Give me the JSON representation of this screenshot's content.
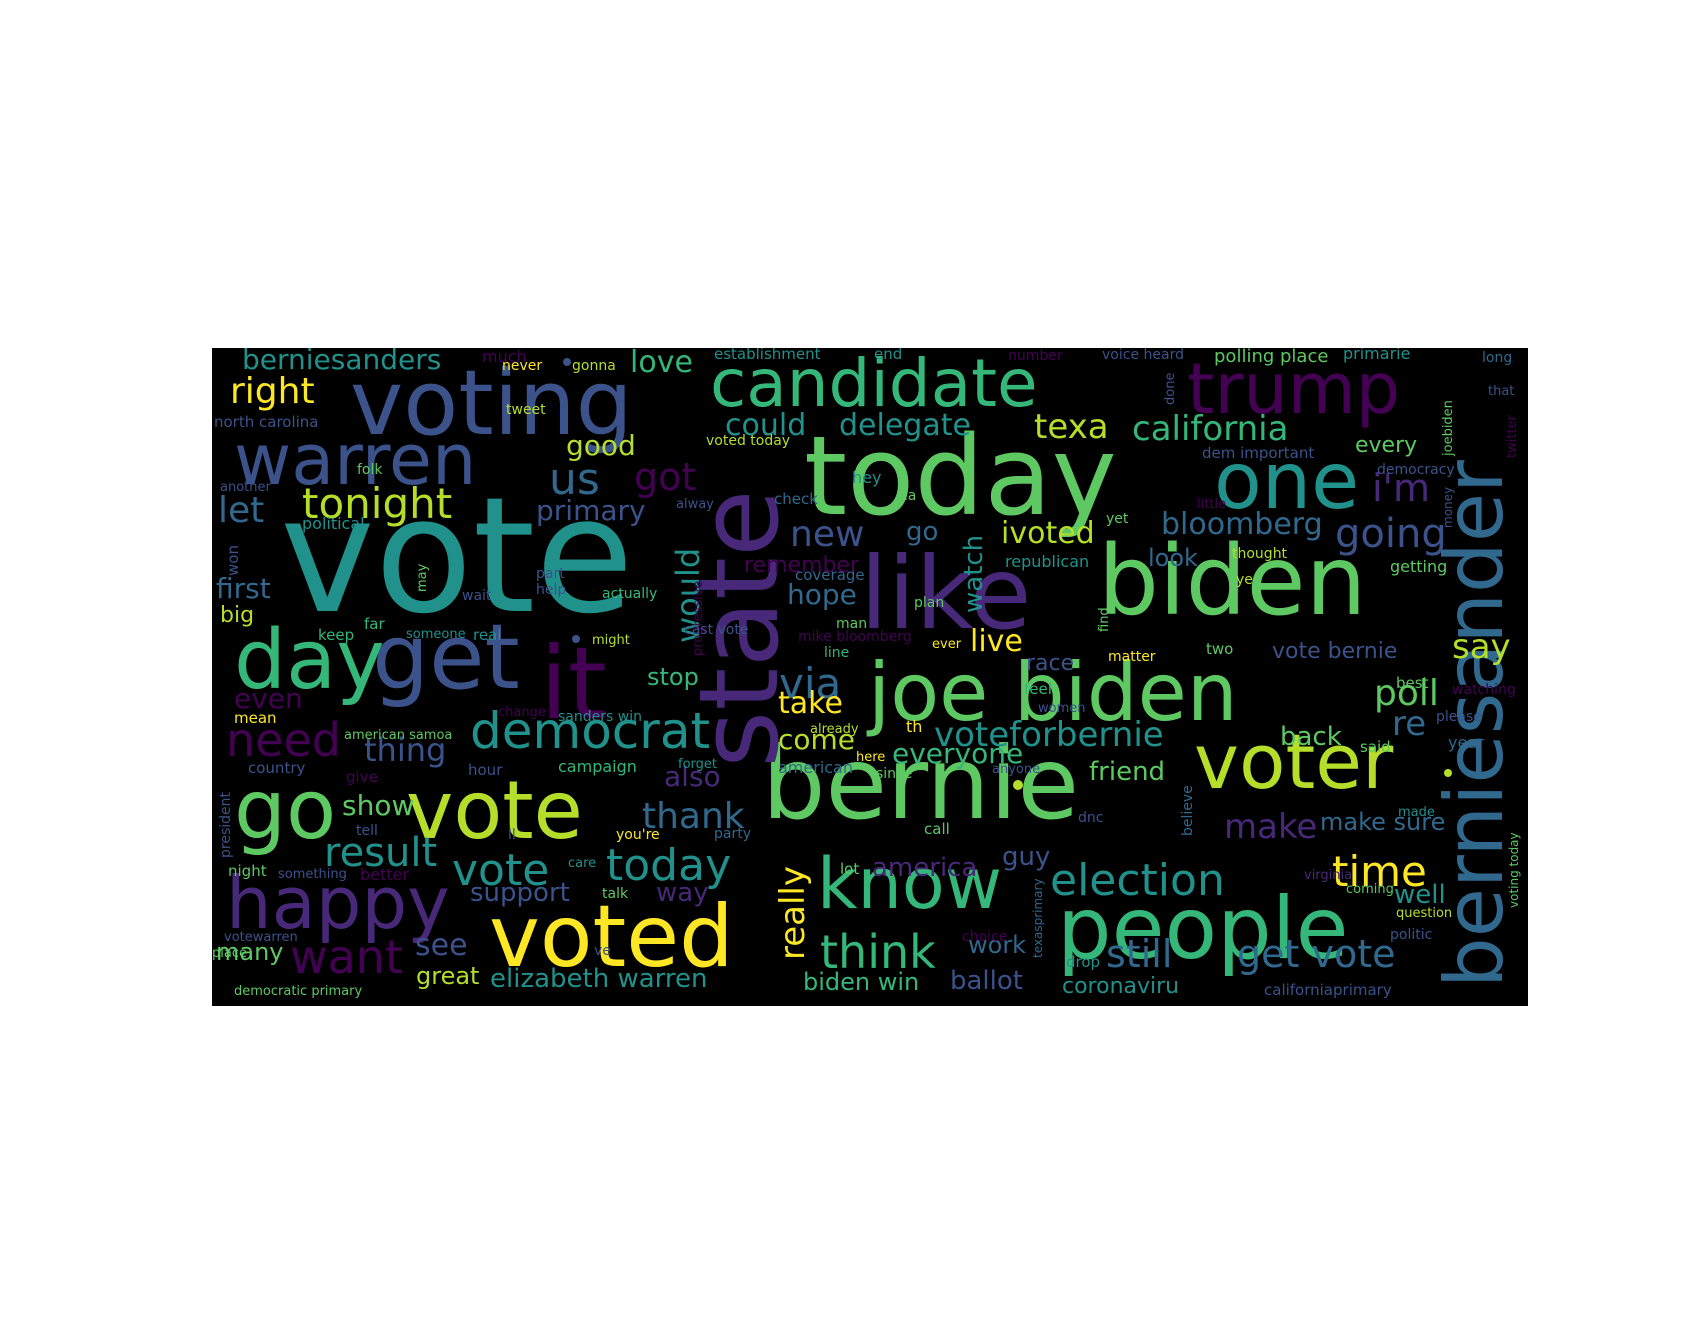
{
  "palette": {
    "background": "#000000",
    "c1": "#440154",
    "c2": "#3b528b",
    "c3": "#21918c",
    "c4": "#5ec962",
    "c5": "#fde725"
  },
  "words": [
    {
      "text": "vote",
      "color": "#21918c"
    },
    {
      "text": "today",
      "color": "#5ec962"
    },
    {
      "text": "bernie",
      "color": "#5ec962"
    },
    {
      "text": "voting",
      "color": "#3b528b"
    },
    {
      "text": "candidate",
      "color": "#35b779"
    },
    {
      "text": "trump",
      "color": "#440154"
    },
    {
      "text": "biden",
      "color": "#5ec962"
    },
    {
      "text": "joe biden",
      "color": "#5ec962"
    },
    {
      "text": "like",
      "color": "#482878"
    },
    {
      "text": "state",
      "color": "#482878"
    },
    {
      "text": "berniesander",
      "color": "#31688e"
    },
    {
      "text": "get",
      "color": "#3b528b"
    },
    {
      "text": "it",
      "color": "#440154"
    },
    {
      "text": "day",
      "color": "#35b779"
    },
    {
      "text": "warren",
      "color": "#3b528b"
    },
    {
      "text": "one",
      "color": "#21918c"
    },
    {
      "text": "voter",
      "color": "#b5de2b"
    },
    {
      "text": "go",
      "color": "#5ec962"
    },
    {
      "text": "vote",
      "color": "#b5de2b"
    },
    {
      "text": "voted",
      "color": "#fde725"
    },
    {
      "text": "people",
      "color": "#35b779"
    },
    {
      "text": "happy",
      "color": "#482878"
    },
    {
      "text": "know",
      "color": "#35b779"
    },
    {
      "text": "democrat",
      "color": "#21918c"
    },
    {
      "text": "tonight",
      "color": "#b5de2b"
    },
    {
      "text": "election",
      "color": "#21918c"
    },
    {
      "text": "today",
      "color": "#21918c"
    },
    {
      "text": "vote",
      "color": "#21918c"
    },
    {
      "text": "think",
      "color": "#35b779"
    },
    {
      "text": "need",
      "color": "#440154"
    },
    {
      "text": "want",
      "color": "#440154"
    },
    {
      "text": "time",
      "color": "#fde725"
    },
    {
      "text": "california",
      "color": "#35b779"
    },
    {
      "text": "voteforbernie",
      "color": "#21918c"
    },
    {
      "text": "via",
      "color": "#31688e"
    },
    {
      "text": "us",
      "color": "#31688e"
    },
    {
      "text": "new",
      "color": "#3b528b"
    },
    {
      "text": "going",
      "color": "#3b528b"
    },
    {
      "text": "berniesanders",
      "color": "#21918c"
    },
    {
      "text": "right",
      "color": "#fde725"
    },
    {
      "text": "got",
      "color": "#440154"
    },
    {
      "text": "texa",
      "color": "#b5de2b"
    },
    {
      "text": "delegate",
      "color": "#21918c"
    },
    {
      "text": "could",
      "color": "#21918c"
    },
    {
      "text": "result",
      "color": "#21918c"
    },
    {
      "text": "i'm",
      "color": "#482878"
    },
    {
      "text": "poll",
      "color": "#5ec962"
    },
    {
      "text": "say",
      "color": "#b5de2b"
    },
    {
      "text": "re",
      "color": "#31688e"
    },
    {
      "text": "live",
      "color": "#fde725"
    },
    {
      "text": "would",
      "color": "#21918c"
    },
    {
      "text": "watch",
      "color": "#21918c"
    },
    {
      "text": "bloomberg",
      "color": "#31688e"
    },
    {
      "text": "ivoted",
      "color": "#b5de2b"
    },
    {
      "text": "thank",
      "color": "#31688e"
    },
    {
      "text": "make",
      "color": "#482878"
    },
    {
      "text": "really",
      "color": "#fde725"
    },
    {
      "text": "get vote",
      "color": "#31688e"
    },
    {
      "text": "still",
      "color": "#31688e"
    },
    {
      "text": "let",
      "color": "#31688e"
    },
    {
      "text": "primary",
      "color": "#3b528b"
    },
    {
      "text": "good",
      "color": "#b5de2b"
    },
    {
      "text": "love",
      "color": "#35b779"
    },
    {
      "text": "take",
      "color": "#fde725"
    },
    {
      "text": "come",
      "color": "#b5de2b"
    },
    {
      "text": "hope",
      "color": "#31688e"
    },
    {
      "text": "thing",
      "color": "#3b528b"
    },
    {
      "text": "show",
      "color": "#5ec962"
    },
    {
      "text": "see",
      "color": "#3b528b"
    },
    {
      "text": "stop",
      "color": "#35b779"
    },
    {
      "text": "also",
      "color": "#482878"
    },
    {
      "text": "everyone",
      "color": "#35b779"
    },
    {
      "text": "friend",
      "color": "#5ec962"
    },
    {
      "text": "back",
      "color": "#5ec962"
    },
    {
      "text": "america",
      "color": "#482878"
    },
    {
      "text": "guy",
      "color": "#3b528b"
    },
    {
      "text": "well",
      "color": "#21918c"
    },
    {
      "text": "make sure",
      "color": "#31688e"
    },
    {
      "text": "vote bernie",
      "color": "#3b528b"
    },
    {
      "text": "first",
      "color": "#31688e"
    },
    {
      "text": "big",
      "color": "#b5de2b"
    },
    {
      "text": "even",
      "color": "#440154"
    },
    {
      "text": "many",
      "color": "#5ec962"
    },
    {
      "text": "great",
      "color": "#b5de2b"
    },
    {
      "text": "support",
      "color": "#3b528b"
    },
    {
      "text": "way",
      "color": "#482878"
    },
    {
      "text": "elizabeth warren",
      "color": "#21918c"
    },
    {
      "text": "biden win",
      "color": "#35b779"
    },
    {
      "text": "ballot",
      "color": "#3b528b"
    },
    {
      "text": "coronaviru",
      "color": "#21918c"
    },
    {
      "text": "work",
      "color": "#31688e"
    },
    {
      "text": "every",
      "color": "#5ec962"
    },
    {
      "text": "look",
      "color": "#31688e"
    },
    {
      "text": "remember",
      "color": "#440154"
    },
    {
      "text": "race",
      "color": "#3b528b"
    },
    {
      "text": "go",
      "color": "#31688e"
    },
    {
      "text": "establishment",
      "color": "#21918c"
    },
    {
      "text": "polling place",
      "color": "#5ec962"
    },
    {
      "text": "primarie",
      "color": "#21918c"
    },
    {
      "text": "much",
      "color": "#440154"
    },
    {
      "text": "never",
      "color": "#fde725"
    },
    {
      "text": "gonna",
      "color": "#b5de2b"
    },
    {
      "text": "end",
      "color": "#21918c"
    },
    {
      "text": "number",
      "color": "#440154"
    },
    {
      "text": "voice heard",
      "color": "#3b528b"
    },
    {
      "text": "long",
      "color": "#31688e"
    },
    {
      "text": "north carolina",
      "color": "#3b528b"
    },
    {
      "text": "tweet",
      "color": "#b5de2b"
    },
    {
      "text": "voted today",
      "color": "#b5de2b"
    },
    {
      "text": "dem important",
      "color": "#3b528b"
    },
    {
      "text": "democracy",
      "color": "#3b528b"
    },
    {
      "text": "folk",
      "color": "#5ec962"
    },
    {
      "text": "another",
      "color": "#3b528b"
    },
    {
      "text": "political",
      "color": "#21918c"
    },
    {
      "text": "alway",
      "color": "#3b528b"
    },
    {
      "text": "check",
      "color": "#31688e"
    },
    {
      "text": "hey",
      "color": "#21918c"
    },
    {
      "text": "ca",
      "color": "#5ec962"
    },
    {
      "text": "yet",
      "color": "#5ec962"
    },
    {
      "text": "little",
      "color": "#440154"
    },
    {
      "text": "thought",
      "color": "#b5de2b"
    },
    {
      "text": "republican",
      "color": "#21918c"
    },
    {
      "text": "getting",
      "color": "#5ec962"
    },
    {
      "text": "won",
      "color": "#3b528b"
    },
    {
      "text": "may",
      "color": "#5ec962"
    },
    {
      "text": "wait",
      "color": "#3b528b"
    },
    {
      "text": "part",
      "color": "#3b528b"
    },
    {
      "text": "help",
      "color": "#3b528b"
    },
    {
      "text": "actually",
      "color": "#35b779"
    },
    {
      "text": "coverage",
      "color": "#31688e"
    },
    {
      "text": "progressive",
      "color": "#440154"
    },
    {
      "text": "keep",
      "color": "#35b779"
    },
    {
      "text": "far",
      "color": "#35b779"
    },
    {
      "text": "someone",
      "color": "#21918c"
    },
    {
      "text": "real",
      "color": "#21918c"
    },
    {
      "text": "might",
      "color": "#b5de2b"
    },
    {
      "text": "cast vote",
      "color": "#3b528b"
    },
    {
      "text": "man",
      "color": "#5ec962"
    },
    {
      "text": "plan",
      "color": "#5ec962"
    },
    {
      "text": "mike bloomberg",
      "color": "#440154"
    },
    {
      "text": "line",
      "color": "#35b779"
    },
    {
      "text": "ever",
      "color": "#fde725"
    },
    {
      "text": "find",
      "color": "#5ec962"
    },
    {
      "text": "matter",
      "color": "#fde725"
    },
    {
      "text": "two",
      "color": "#5ec962"
    },
    {
      "text": "ye",
      "color": "#b5de2b"
    },
    {
      "text": "feel",
      "color": "#35b779"
    },
    {
      "text": "best",
      "color": "#5ec962"
    },
    {
      "text": "watching",
      "color": "#440154"
    },
    {
      "text": "please",
      "color": "#3b528b"
    },
    {
      "text": "year",
      "color": "#31688e"
    },
    {
      "text": "said",
      "color": "#5ec962"
    },
    {
      "text": "women",
      "color": "#3b528b"
    },
    {
      "text": "mean",
      "color": "#fde725"
    },
    {
      "text": "change",
      "color": "#440154"
    },
    {
      "text": "sanders win",
      "color": "#21918c"
    },
    {
      "text": "forget",
      "color": "#21918c"
    },
    {
      "text": "already",
      "color": "#b5de2b"
    },
    {
      "text": "th",
      "color": "#fde725"
    },
    {
      "text": "here",
      "color": "#fde725"
    },
    {
      "text": "american samoa",
      "color": "#5ec962"
    },
    {
      "text": "hour",
      "color": "#3b528b"
    },
    {
      "text": "campaign",
      "color": "#35b779"
    },
    {
      "text": "american",
      "color": "#31688e"
    },
    {
      "text": "since",
      "color": "#5ec962"
    },
    {
      "text": "anyone",
      "color": "#3b528b"
    },
    {
      "text": "country",
      "color": "#3b528b"
    },
    {
      "text": "give",
      "color": "#440154"
    },
    {
      "text": "president",
      "color": "#3b528b"
    },
    {
      "text": "tell",
      "color": "#3b528b"
    },
    {
      "text": "ll",
      "color": "#3b528b"
    },
    {
      "text": "you're",
      "color": "#fde725"
    },
    {
      "text": "party",
      "color": "#31688e"
    },
    {
      "text": "call",
      "color": "#5ec962"
    },
    {
      "text": "dnc",
      "color": "#3b528b"
    },
    {
      "text": "believe",
      "color": "#31688e"
    },
    {
      "text": "made",
      "color": "#21918c"
    },
    {
      "text": "voting today",
      "color": "#5ec962"
    },
    {
      "text": "night",
      "color": "#5ec962"
    },
    {
      "text": "something",
      "color": "#3b528b"
    },
    {
      "text": "better",
      "color": "#440154"
    },
    {
      "text": "care",
      "color": "#21918c"
    },
    {
      "text": "talk",
      "color": "#5ec962"
    },
    {
      "text": "lot",
      "color": "#5ec962"
    },
    {
      "text": "texasprimary",
      "color": "#31688e"
    },
    {
      "text": "virginia",
      "color": "#482878"
    },
    {
      "text": "coming",
      "color": "#5ec962"
    },
    {
      "text": "question",
      "color": "#b5de2b"
    },
    {
      "text": "politic",
      "color": "#3b528b"
    },
    {
      "text": "choice",
      "color": "#440154"
    },
    {
      "text": "votewarren",
      "color": "#3b528b"
    },
    {
      "text": "place",
      "color": "#5ec962"
    },
    {
      "text": "ve",
      "color": "#3b528b"
    },
    {
      "text": "drop",
      "color": "#21918c"
    },
    {
      "text": "californiaprimary",
      "color": "#3b528b"
    },
    {
      "text": "democratic primary",
      "color": "#5ec962"
    },
    {
      "text": "joebiden",
      "color": "#5ec962"
    },
    {
      "text": "that",
      "color": "#3b528b"
    },
    {
      "text": "twitter",
      "color": "#440154"
    },
    {
      "text": "money",
      "color": "#3b528b"
    },
    {
      "text": "done",
      "color": "#3b528b"
    }
  ]
}
